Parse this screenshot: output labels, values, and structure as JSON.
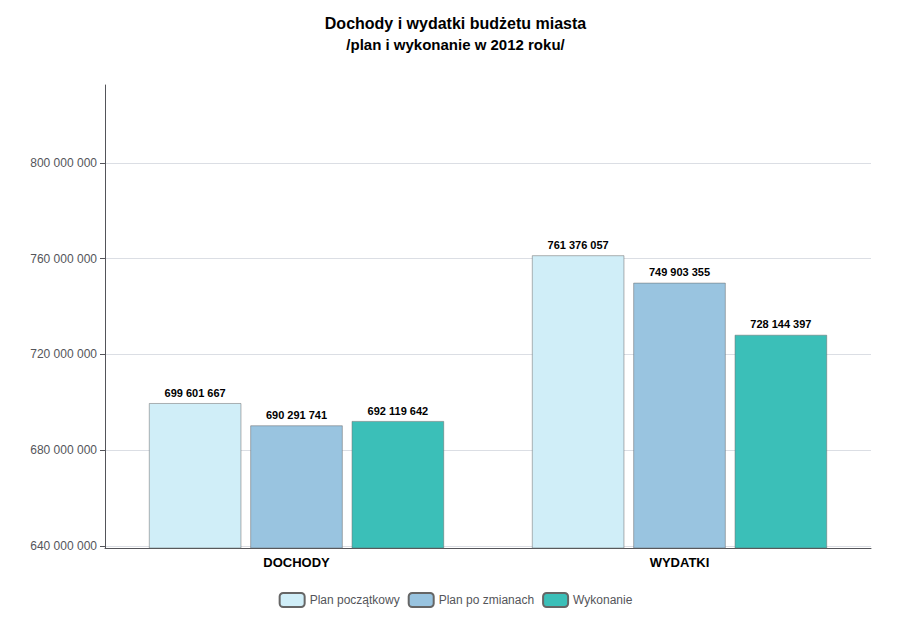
{
  "chart_data": {
    "type": "bar",
    "title": "Dochody i wydatki budżetu miasta",
    "subtitle": "/plan i wykonanie w 2012 roku/",
    "categories": [
      "DOCHODY",
      "WYDATKI"
    ],
    "series": [
      {
        "name": "Plan początkowy",
        "color": "#d0eef8",
        "values": [
          699601667,
          761376057
        ],
        "value_labels": [
          "699 601 667",
          "761 376 057"
        ]
      },
      {
        "name": "Plan po zmianach",
        "color": "#99c4e0",
        "values": [
          690291741,
          749903355
        ],
        "value_labels": [
          "690 291 741",
          "749 903 355"
        ]
      },
      {
        "name": "Wykonanie",
        "color": "#3bbfb8",
        "values": [
          692119642,
          728144397
        ],
        "value_labels": [
          "692 119 642",
          "728 144 397"
        ]
      }
    ],
    "ylim": [
      639100000,
      832600000
    ],
    "yticks": [
      {
        "value": 640000000,
        "label": "640 000 000"
      },
      {
        "value": 680000000,
        "label": "680 000 000"
      },
      {
        "value": 720000000,
        "label": "720 000 000"
      },
      {
        "value": 760000000,
        "label": "760 000 000"
      },
      {
        "value": 800000000,
        "label": "800 000 000"
      }
    ],
    "grid": true,
    "legend": "bottom",
    "data_labels": true
  }
}
